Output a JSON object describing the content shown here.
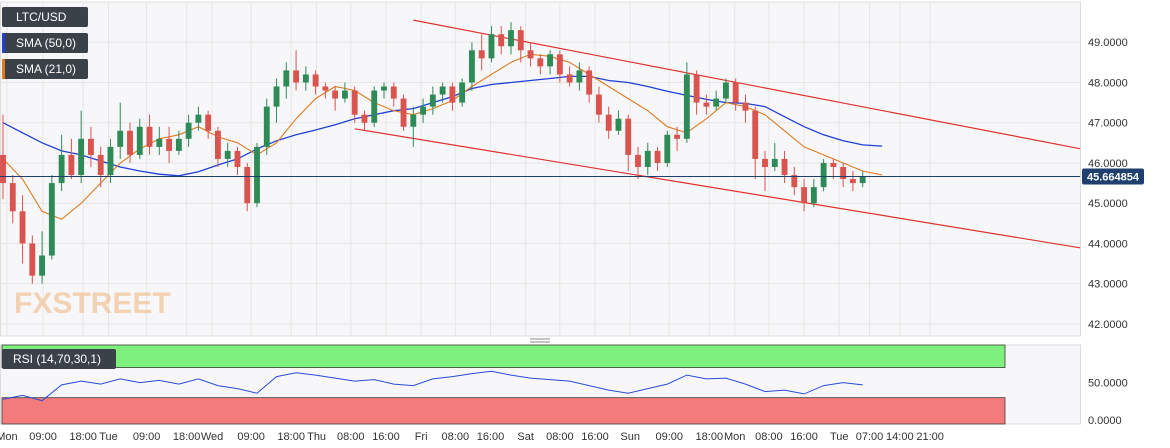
{
  "chart_data": [
    {
      "type": "candlestick",
      "symbol": "LTC/USD",
      "last_price": "45.664854",
      "watermark": "FXSTREET",
      "indicators": [
        {
          "name": "SMA (50,0)",
          "color": "#1f3fd6"
        },
        {
          "name": "SMA (21,0)",
          "color": "#e07a1f"
        }
      ],
      "up_color": "#2e8b57",
      "down_color": "#d9534f",
      "ylim": [
        41.7,
        50.0
      ],
      "y_ticks": [
        "49.0000",
        "48.0000",
        "47.0000",
        "46.0000",
        "45.0000",
        "44.0000",
        "43.0000",
        "42.0000"
      ],
      "y_tick_values": [
        49,
        48,
        47,
        46,
        45,
        44,
        43,
        42
      ],
      "x_range": [
        0,
        117
      ],
      "x_ticks": [
        {
          "label": "Mon",
          "t": 0.4
        },
        {
          "label": "09:00",
          "t": 4.1
        },
        {
          "label": "18:00",
          "t": 8.2
        },
        {
          "label": "Tue",
          "t": 10.8
        },
        {
          "label": "09:00",
          "t": 14.7
        },
        {
          "label": "18:00",
          "t": 18.8
        },
        {
          "label": "Wed",
          "t": 21.4
        },
        {
          "label": "09:00",
          "t": 25.4
        },
        {
          "label": "18:00",
          "t": 29.5
        },
        {
          "label": "Thu",
          "t": 32.1
        },
        {
          "label": "08:00",
          "t": 35.6
        },
        {
          "label": "16:00",
          "t": 39.2
        },
        {
          "label": "Fri",
          "t": 42.8
        },
        {
          "label": "08:00",
          "t": 46.3
        },
        {
          "label": "16:00",
          "t": 49.9
        },
        {
          "label": "Sat",
          "t": 53.5
        },
        {
          "label": "08:00",
          "t": 57.0
        },
        {
          "label": "16:00",
          "t": 60.6
        },
        {
          "label": "Sun",
          "t": 64.2
        },
        {
          "label": "09:00",
          "t": 68.2
        },
        {
          "label": "18:00",
          "t": 72.3
        },
        {
          "label": "Mon",
          "t": 74.9
        },
        {
          "label": "08:00",
          "t": 78.4
        },
        {
          "label": "16:00",
          "t": 82.0
        },
        {
          "label": "Tue",
          "t": 85.6
        },
        {
          "label": "07:00",
          "t": 88.7
        },
        {
          "label": "14:00",
          "t": 91.8
        },
        {
          "label": "21:00",
          "t": 94.9
        }
      ],
      "sma50": [
        [
          0,
          47.0
        ],
        [
          2,
          46.75
        ],
        [
          4,
          46.5
        ],
        [
          6,
          46.3
        ],
        [
          8,
          46.2
        ],
        [
          10,
          46.05
        ],
        [
          12,
          45.9
        ],
        [
          14,
          45.8
        ],
        [
          16,
          45.72
        ],
        [
          18,
          45.68
        ],
        [
          20,
          45.78
        ],
        [
          22,
          45.95
        ],
        [
          24,
          46.1
        ],
        [
          26,
          46.35
        ],
        [
          28,
          46.55
        ],
        [
          30,
          46.7
        ],
        [
          32,
          46.82
        ],
        [
          34,
          46.95
        ],
        [
          36,
          47.1
        ],
        [
          38,
          47.2
        ],
        [
          40,
          47.3
        ],
        [
          42,
          47.35
        ],
        [
          44,
          47.5
        ],
        [
          46,
          47.65
        ],
        [
          48,
          47.85
        ],
        [
          50,
          47.95
        ],
        [
          52,
          48.0
        ],
        [
          54,
          48.05
        ],
        [
          56,
          48.1
        ],
        [
          58,
          48.15
        ],
        [
          60,
          48.15
        ],
        [
          62,
          48.05
        ],
        [
          64,
          48.0
        ],
        [
          66,
          47.9
        ],
        [
          68,
          47.78
        ],
        [
          70,
          47.68
        ],
        [
          72,
          47.58
        ],
        [
          74,
          47.5
        ],
        [
          76,
          47.48
        ],
        [
          78,
          47.4
        ],
        [
          80,
          47.15
        ],
        [
          82,
          46.9
        ],
        [
          84,
          46.7
        ],
        [
          86,
          46.55
        ],
        [
          88,
          46.45
        ],
        [
          90,
          46.42
        ]
      ],
      "sma21": [
        [
          0,
          46.1
        ],
        [
          2,
          45.6
        ],
        [
          4,
          44.8
        ],
        [
          6,
          44.6
        ],
        [
          8,
          45.0
        ],
        [
          10,
          45.5
        ],
        [
          12,
          46.0
        ],
        [
          14,
          46.35
        ],
        [
          16,
          46.6
        ],
        [
          18,
          46.7
        ],
        [
          20,
          46.9
        ],
        [
          22,
          46.65
        ],
        [
          24,
          46.5
        ],
        [
          26,
          46.2
        ],
        [
          28,
          46.5
        ],
        [
          30,
          47.1
        ],
        [
          32,
          47.6
        ],
        [
          34,
          47.9
        ],
        [
          36,
          47.8
        ],
        [
          38,
          47.5
        ],
        [
          40,
          47.3
        ],
        [
          42,
          47.2
        ],
        [
          44,
          47.35
        ],
        [
          46,
          47.55
        ],
        [
          48,
          47.9
        ],
        [
          50,
          48.2
        ],
        [
          52,
          48.5
        ],
        [
          54,
          48.7
        ],
        [
          56,
          48.65
        ],
        [
          58,
          48.5
        ],
        [
          60,
          48.2
        ],
        [
          62,
          47.9
        ],
        [
          64,
          47.6
        ],
        [
          66,
          47.3
        ],
        [
          68,
          46.9
        ],
        [
          70,
          46.75
        ],
        [
          72,
          47.1
        ],
        [
          74,
          47.5
        ],
        [
          76,
          47.4
        ],
        [
          78,
          47.2
        ],
        [
          80,
          46.8
        ],
        [
          82,
          46.4
        ],
        [
          84,
          46.2
        ],
        [
          86,
          46.0
        ],
        [
          88,
          45.8
        ],
        [
          90,
          45.7
        ]
      ],
      "channel_upper": [
        [
          42,
          49.55
        ],
        [
          105,
          46.6
        ]
      ],
      "channel_lower": [
        [
          36,
          46.85
        ],
        [
          105,
          44.1
        ]
      ],
      "candles": [
        [
          0,
          46.2,
          45.5,
          47.2,
          45.1
        ],
        [
          1,
          45.5,
          44.8,
          45.7,
          44.5
        ],
        [
          2,
          44.8,
          44.0,
          45.2,
          43.5
        ],
        [
          3,
          44.0,
          43.2,
          44.2,
          43.0
        ],
        [
          4,
          43.2,
          43.7,
          44.3,
          43.0
        ],
        [
          5,
          43.7,
          45.5,
          45.7,
          43.6
        ],
        [
          6,
          45.5,
          46.2,
          46.7,
          45.3
        ],
        [
          7,
          46.2,
          45.7,
          46.6,
          45.6
        ],
        [
          8,
          45.7,
          46.6,
          47.3,
          45.5
        ],
        [
          9,
          46.6,
          46.2,
          46.9,
          45.9
        ],
        [
          10,
          46.2,
          45.7,
          46.4,
          45.4
        ],
        [
          11,
          45.7,
          46.4,
          46.6,
          45.5
        ],
        [
          12,
          46.4,
          46.8,
          47.5,
          46.1
        ],
        [
          13,
          46.8,
          46.2,
          47.0,
          46.0
        ],
        [
          14,
          46.2,
          46.9,
          47.1,
          46.1
        ],
        [
          15,
          46.9,
          46.4,
          47.2,
          46.2
        ],
        [
          16,
          46.4,
          46.6,
          46.9,
          46.2
        ],
        [
          17,
          46.6,
          46.3,
          46.9,
          46.0
        ],
        [
          18,
          46.3,
          46.6,
          46.8,
          46.2
        ],
        [
          19,
          46.6,
          47.0,
          47.2,
          46.4
        ],
        [
          20,
          47.0,
          47.2,
          47.4,
          46.8
        ],
        [
          21,
          47.2,
          46.8,
          47.3,
          46.6
        ],
        [
          22,
          46.8,
          46.1,
          46.9,
          45.9
        ],
        [
          23,
          46.1,
          46.3,
          46.5,
          45.9
        ],
        [
          24,
          46.3,
          45.9,
          46.4,
          45.7
        ],
        [
          25,
          45.9,
          45.0,
          46.0,
          44.8
        ],
        [
          26,
          45.0,
          46.4,
          46.5,
          44.9
        ],
        [
          27,
          46.4,
          47.4,
          47.6,
          46.2
        ],
        [
          28,
          47.4,
          47.9,
          48.1,
          47.0
        ],
        [
          29,
          47.9,
          48.3,
          48.5,
          47.6
        ],
        [
          30,
          48.3,
          48.0,
          48.8,
          47.8
        ],
        [
          31,
          48.0,
          48.2,
          48.4,
          47.8
        ],
        [
          32,
          48.2,
          47.9,
          48.3,
          47.7
        ],
        [
          33,
          47.9,
          47.8,
          48.0,
          47.6
        ],
        [
          34,
          47.8,
          47.6,
          47.9,
          47.3
        ],
        [
          35,
          47.6,
          47.8,
          48.0,
          47.5
        ],
        [
          36,
          47.8,
          47.2,
          47.9,
          47.0
        ],
        [
          37,
          47.2,
          47.0,
          47.3,
          46.8
        ],
        [
          38,
          47.0,
          47.8,
          47.9,
          46.9
        ],
        [
          39,
          47.8,
          47.9,
          48.0,
          47.6
        ],
        [
          40,
          47.9,
          47.6,
          48.0,
          47.4
        ],
        [
          41,
          47.6,
          46.9,
          47.7,
          46.8
        ],
        [
          42,
          46.9,
          47.2,
          47.4,
          46.4
        ],
        [
          43,
          47.2,
          47.4,
          47.6,
          47.0
        ],
        [
          44,
          47.4,
          47.7,
          47.9,
          47.2
        ],
        [
          45,
          47.7,
          47.9,
          48.0,
          47.5
        ],
        [
          46,
          47.9,
          47.5,
          48.0,
          47.3
        ],
        [
          47,
          47.5,
          48.0,
          48.1,
          47.4
        ],
        [
          48,
          48.0,
          48.8,
          49.0,
          47.8
        ],
        [
          49,
          48.8,
          48.6,
          49.2,
          48.3
        ],
        [
          50,
          48.6,
          49.2,
          49.4,
          48.5
        ],
        [
          51,
          49.2,
          48.9,
          49.4,
          48.7
        ],
        [
          52,
          48.9,
          49.3,
          49.5,
          48.7
        ],
        [
          53,
          49.3,
          48.8,
          49.4,
          48.5
        ],
        [
          54,
          48.8,
          48.6,
          49.0,
          48.4
        ],
        [
          55,
          48.6,
          48.4,
          48.7,
          48.2
        ],
        [
          56,
          48.4,
          48.7,
          48.8,
          48.2
        ],
        [
          57,
          48.7,
          48.2,
          48.8,
          48.0
        ],
        [
          58,
          48.2,
          48.0,
          48.4,
          47.9
        ],
        [
          59,
          48.0,
          48.3,
          48.5,
          47.8
        ],
        [
          60,
          48.3,
          47.7,
          48.4,
          47.5
        ],
        [
          61,
          47.7,
          47.2,
          47.9,
          47.0
        ],
        [
          62,
          47.2,
          46.8,
          47.4,
          46.6
        ],
        [
          63,
          46.8,
          47.1,
          47.3,
          46.7
        ],
        [
          64,
          47.1,
          46.2,
          47.2,
          45.8
        ],
        [
          65,
          46.2,
          45.9,
          46.4,
          45.6
        ],
        [
          66,
          45.9,
          46.3,
          46.5,
          45.7
        ],
        [
          67,
          46.3,
          46.0,
          46.4,
          45.8
        ],
        [
          68,
          46.0,
          46.7,
          46.8,
          45.9
        ],
        [
          69,
          46.7,
          46.6,
          46.9,
          46.3
        ],
        [
          70,
          46.6,
          48.2,
          48.5,
          46.5
        ],
        [
          71,
          48.2,
          47.5,
          48.3,
          47.2
        ],
        [
          72,
          47.5,
          47.4,
          47.7,
          47.2
        ],
        [
          73,
          47.4,
          47.6,
          47.8,
          47.3
        ],
        [
          74,
          47.6,
          48.0,
          48.1,
          47.5
        ],
        [
          75,
          48.0,
          47.5,
          48.1,
          47.3
        ],
        [
          76,
          47.5,
          47.3,
          47.7,
          47.0
        ],
        [
          77,
          47.3,
          46.1,
          47.4,
          45.6
        ],
        [
          78,
          46.1,
          45.9,
          46.3,
          45.3
        ],
        [
          79,
          45.9,
          46.1,
          46.5,
          45.8
        ],
        [
          80,
          46.1,
          45.7,
          46.3,
          45.5
        ],
        [
          81,
          45.7,
          45.4,
          45.9,
          45.2
        ],
        [
          82,
          45.4,
          45.0,
          45.6,
          44.8
        ],
        [
          83,
          45.0,
          45.4,
          45.6,
          44.9
        ],
        [
          84,
          45.4,
          46.0,
          46.1,
          45.3
        ],
        [
          85,
          46.0,
          45.9,
          46.1,
          45.6
        ],
        [
          86,
          45.9,
          45.6,
          46.0,
          45.4
        ],
        [
          87,
          45.6,
          45.5,
          45.8,
          45.3
        ],
        [
          88,
          45.5,
          45.66,
          45.8,
          45.4
        ]
      ],
      "rsi": {
        "label": "RSI (14,70,30,1)",
        "ylim": [
          -5,
          100
        ],
        "y_ticks": [
          "50.0000",
          "0.0000"
        ],
        "y_tick_values": [
          50,
          0
        ],
        "upper": 70,
        "lower": 30,
        "values": [
          [
            0,
            28
          ],
          [
            2,
            33
          ],
          [
            4,
            26
          ],
          [
            6,
            47
          ],
          [
            8,
            52
          ],
          [
            10,
            48
          ],
          [
            12,
            55
          ],
          [
            14,
            50
          ],
          [
            16,
            53
          ],
          [
            18,
            48
          ],
          [
            20,
            55
          ],
          [
            22,
            46
          ],
          [
            24,
            42
          ],
          [
            26,
            36
          ],
          [
            28,
            58
          ],
          [
            30,
            63
          ],
          [
            32,
            60
          ],
          [
            34,
            56
          ],
          [
            36,
            52
          ],
          [
            38,
            54
          ],
          [
            40,
            48
          ],
          [
            42,
            46
          ],
          [
            44,
            55
          ],
          [
            46,
            58
          ],
          [
            48,
            62
          ],
          [
            50,
            65
          ],
          [
            52,
            60
          ],
          [
            54,
            56
          ],
          [
            56,
            54
          ],
          [
            58,
            52
          ],
          [
            60,
            46
          ],
          [
            62,
            40
          ],
          [
            64,
            36
          ],
          [
            66,
            42
          ],
          [
            68,
            48
          ],
          [
            70,
            60
          ],
          [
            72,
            55
          ],
          [
            74,
            56
          ],
          [
            76,
            48
          ],
          [
            78,
            38
          ],
          [
            80,
            40
          ],
          [
            82,
            35
          ],
          [
            84,
            46
          ],
          [
            86,
            50
          ],
          [
            88,
            47
          ]
        ]
      }
    }
  ]
}
